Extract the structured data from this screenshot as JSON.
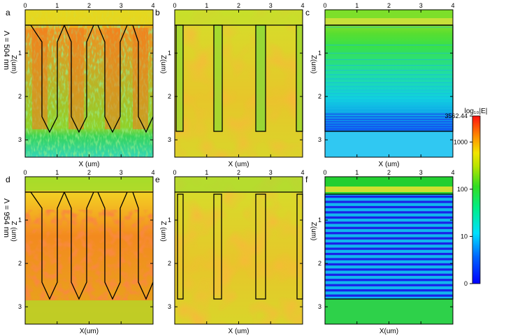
{
  "figure": {
    "rows": [
      {
        "label": "Λ = 504 nm",
        "panels": [
          "a",
          "b",
          "c"
        ]
      },
      {
        "label": "Λ = 954 nm",
        "panels": [
          "d",
          "e",
          "f"
        ]
      }
    ],
    "colors": {
      "low": "#0000ff",
      "cyan": "#00e0ff",
      "green": "#33dd22",
      "yellow": "#f2e500",
      "orange": "#ff8c00",
      "high": "#ff1010"
    }
  },
  "chart_data": [
    {
      "type": "heatmap",
      "panel": "a",
      "wavelength_nm": 504,
      "structure": "tapered pillars",
      "xlabel": "X (um)",
      "ylabel": "Z(um)",
      "xlim": [
        0,
        4
      ],
      "ylim": [
        3.4,
        0
      ],
      "x_ticks": [
        0,
        1,
        2,
        3,
        4
      ],
      "y_ticks": [
        1,
        2,
        3
      ]
    },
    {
      "type": "heatmap",
      "panel": "b",
      "wavelength_nm": 504,
      "structure": "straight pillars",
      "xlabel": "X (um)",
      "ylabel": "Z(um)",
      "xlim": [
        0,
        4
      ],
      "ylim": [
        3.4,
        0
      ],
      "x_ticks": [
        0,
        1,
        2,
        3,
        4
      ],
      "y_ticks": [
        1,
        2,
        3
      ]
    },
    {
      "type": "heatmap",
      "panel": "c",
      "wavelength_nm": 504,
      "structure": "planar layers",
      "xlabel": "X (um)",
      "ylabel": "Z(um)",
      "xlim": [
        0,
        4
      ],
      "ylim": [
        3.4,
        0
      ],
      "x_ticks": [
        0,
        1,
        2,
        3,
        4
      ],
      "y_ticks": [
        1,
        2,
        3
      ]
    },
    {
      "type": "heatmap",
      "panel": "d",
      "wavelength_nm": 954,
      "structure": "tapered pillars",
      "xlabel": "X(um)",
      "ylabel": "Z (um)",
      "xlim": [
        0,
        4
      ],
      "ylim": [
        3.4,
        0
      ],
      "x_ticks": [
        0,
        1,
        2,
        3,
        4
      ],
      "y_ticks": [
        1,
        2,
        3
      ]
    },
    {
      "type": "heatmap",
      "panel": "e",
      "wavelength_nm": 954,
      "structure": "straight pillars",
      "xlabel": "X (um)",
      "ylabel": "Z (um)",
      "xlim": [
        0,
        4
      ],
      "ylim": [
        3.4,
        0
      ],
      "x_ticks": [
        0,
        1,
        2,
        3,
        4
      ],
      "y_ticks": [
        1,
        2,
        3
      ]
    },
    {
      "type": "heatmap",
      "panel": "f",
      "wavelength_nm": 954,
      "structure": "planar layers",
      "xlabel": "X(um)",
      "ylabel": "Z(um)",
      "xlim": [
        0,
        4
      ],
      "ylim": [
        3.4,
        0
      ],
      "x_ticks": [
        0,
        1,
        2,
        3,
        4
      ],
      "y_ticks": [
        1,
        2,
        3
      ]
    }
  ],
  "colorbar": {
    "title": "log₁₀|E|",
    "scale": "log",
    "ticks": [
      {
        "label": "3562.44",
        "value": 3562.44
      },
      {
        "label": "1000",
        "value": 1000
      },
      {
        "label": "100",
        "value": 100
      },
      {
        "label": "10",
        "value": 10
      },
      {
        "label": "0",
        "value": 1
      }
    ],
    "range": [
      1,
      3562.44
    ]
  }
}
